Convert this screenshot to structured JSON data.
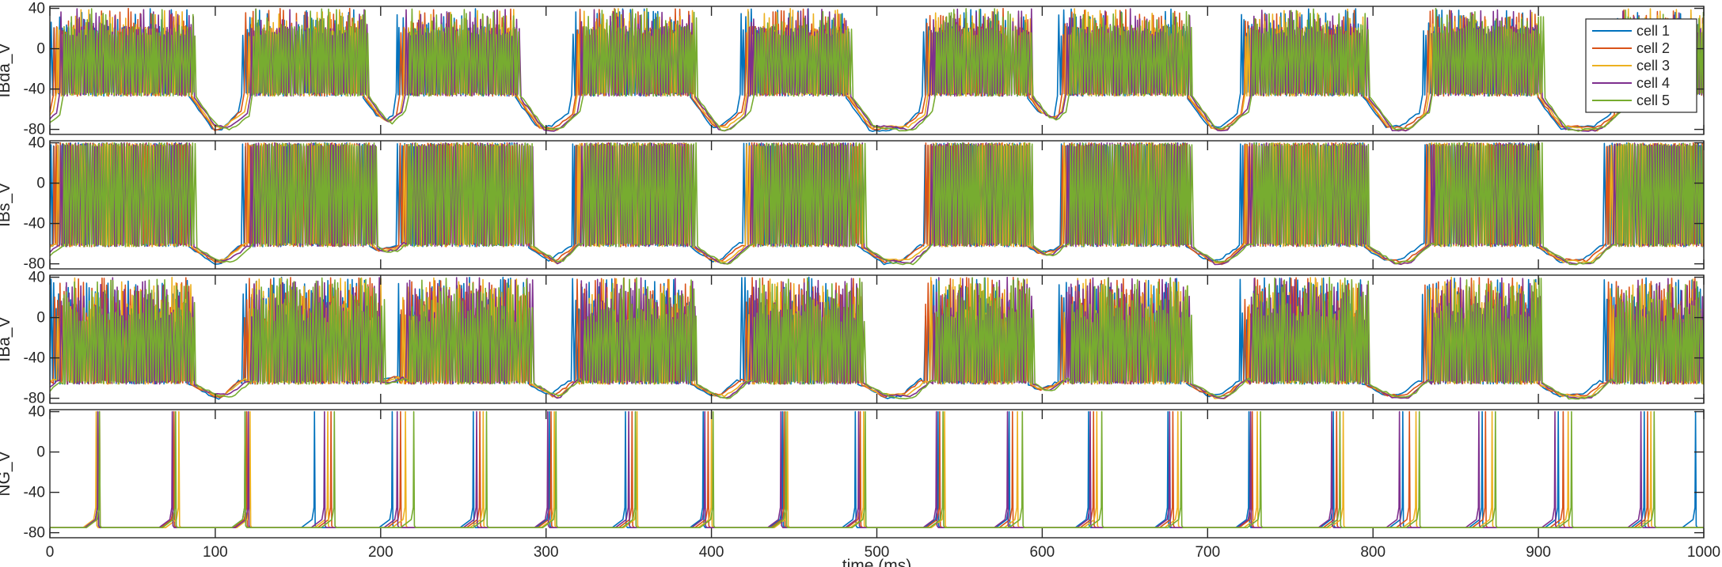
{
  "chart_data": {
    "type": "line",
    "xlabel": "time (ms)",
    "xlim": [
      0,
      1000
    ],
    "x_ticks": [
      0,
      100,
      200,
      300,
      400,
      500,
      600,
      700,
      800,
      900,
      1000
    ],
    "colors": [
      "#0072BD",
      "#D95319",
      "#EDB120",
      "#7E2F8E",
      "#77AC30"
    ],
    "legend": {
      "placement": "top-right",
      "entries": [
        "cell 1",
        "cell 2",
        "cell 3",
        "cell 4",
        "cell 5"
      ]
    },
    "panels": [
      {
        "ylabel": "IBda_V",
        "ylim": [
          -85,
          42
        ],
        "y_ticks": [
          40,
          0,
          -40,
          -80
        ],
        "spike_peak": 40,
        "plateau_low": -47,
        "plateau_high": 12,
        "rest": -80,
        "bursts": [
          [
            3,
            85
          ],
          [
            118,
            190
          ],
          [
            212,
            282
          ],
          [
            318,
            388
          ],
          [
            420,
            482
          ],
          [
            530,
            592
          ],
          [
            612,
            688
          ],
          [
            722,
            795
          ],
          [
            832,
            900
          ],
          [
            948,
            1000
          ]
        ]
      },
      {
        "ylabel": "IBs_V",
        "ylim": [
          -85,
          42
        ],
        "y_ticks": [
          40,
          0,
          -40,
          -80
        ],
        "spike_peak": 40,
        "plateau_low": -63,
        "plateau_high": 0,
        "rest": -79,
        "bursts": [
          [
            3,
            85
          ],
          [
            118,
            195
          ],
          [
            212,
            290
          ],
          [
            318,
            388
          ],
          [
            420,
            490
          ],
          [
            530,
            592
          ],
          [
            612,
            688
          ],
          [
            722,
            795
          ],
          [
            832,
            900
          ],
          [
            942,
            1000
          ]
        ]
      },
      {
        "ylabel": "IBa_V",
        "ylim": [
          -85,
          42
        ],
        "y_ticks": [
          40,
          0,
          -40,
          -80
        ],
        "spike_peak": 40,
        "plateau_low": -66,
        "plateau_high": -55,
        "rest": -79,
        "bursts": [
          [
            3,
            85
          ],
          [
            118,
            200
          ],
          [
            212,
            290
          ],
          [
            318,
            388
          ],
          [
            420,
            490
          ],
          [
            530,
            592
          ],
          [
            612,
            688
          ],
          [
            722,
            795
          ],
          [
            832,
            900
          ],
          [
            942,
            1000
          ]
        ]
      },
      {
        "ylabel": "NG_V",
        "ylim": [
          -85,
          42
        ],
        "y_ticks": [
          40,
          0,
          -40,
          -80
        ],
        "spike_peak": 40,
        "rest": -75,
        "spikes": [
          [
            29,
            75,
            118,
            160,
            207,
            256,
            302,
            348,
            395,
            443,
            487,
            537,
            580,
            628,
            676,
            725,
            776,
            818,
            866,
            912,
            964,
            995
          ],
          [
            30,
            75,
            119,
            170,
            212,
            260,
            303,
            352,
            398,
            444,
            490,
            538,
            582,
            631,
            679,
            727,
            778,
            822,
            868,
            915,
            966
          ],
          [
            28,
            78,
            121,
            168,
            215,
            262,
            305,
            355,
            400,
            446,
            492,
            541,
            585,
            633,
            682,
            730,
            782,
            826,
            872,
            918,
            968
          ],
          [
            29,
            74,
            120,
            166,
            210,
            258,
            301,
            350,
            396,
            442,
            489,
            536,
            579,
            629,
            677,
            726,
            775,
            816,
            864,
            910,
            962
          ],
          [
            30,
            76,
            118,
            172,
            220,
            264,
            306,
            354,
            401,
            445,
            493,
            540,
            588,
            636,
            684,
            732,
            780,
            828,
            874,
            920,
            970
          ]
        ]
      }
    ]
  }
}
